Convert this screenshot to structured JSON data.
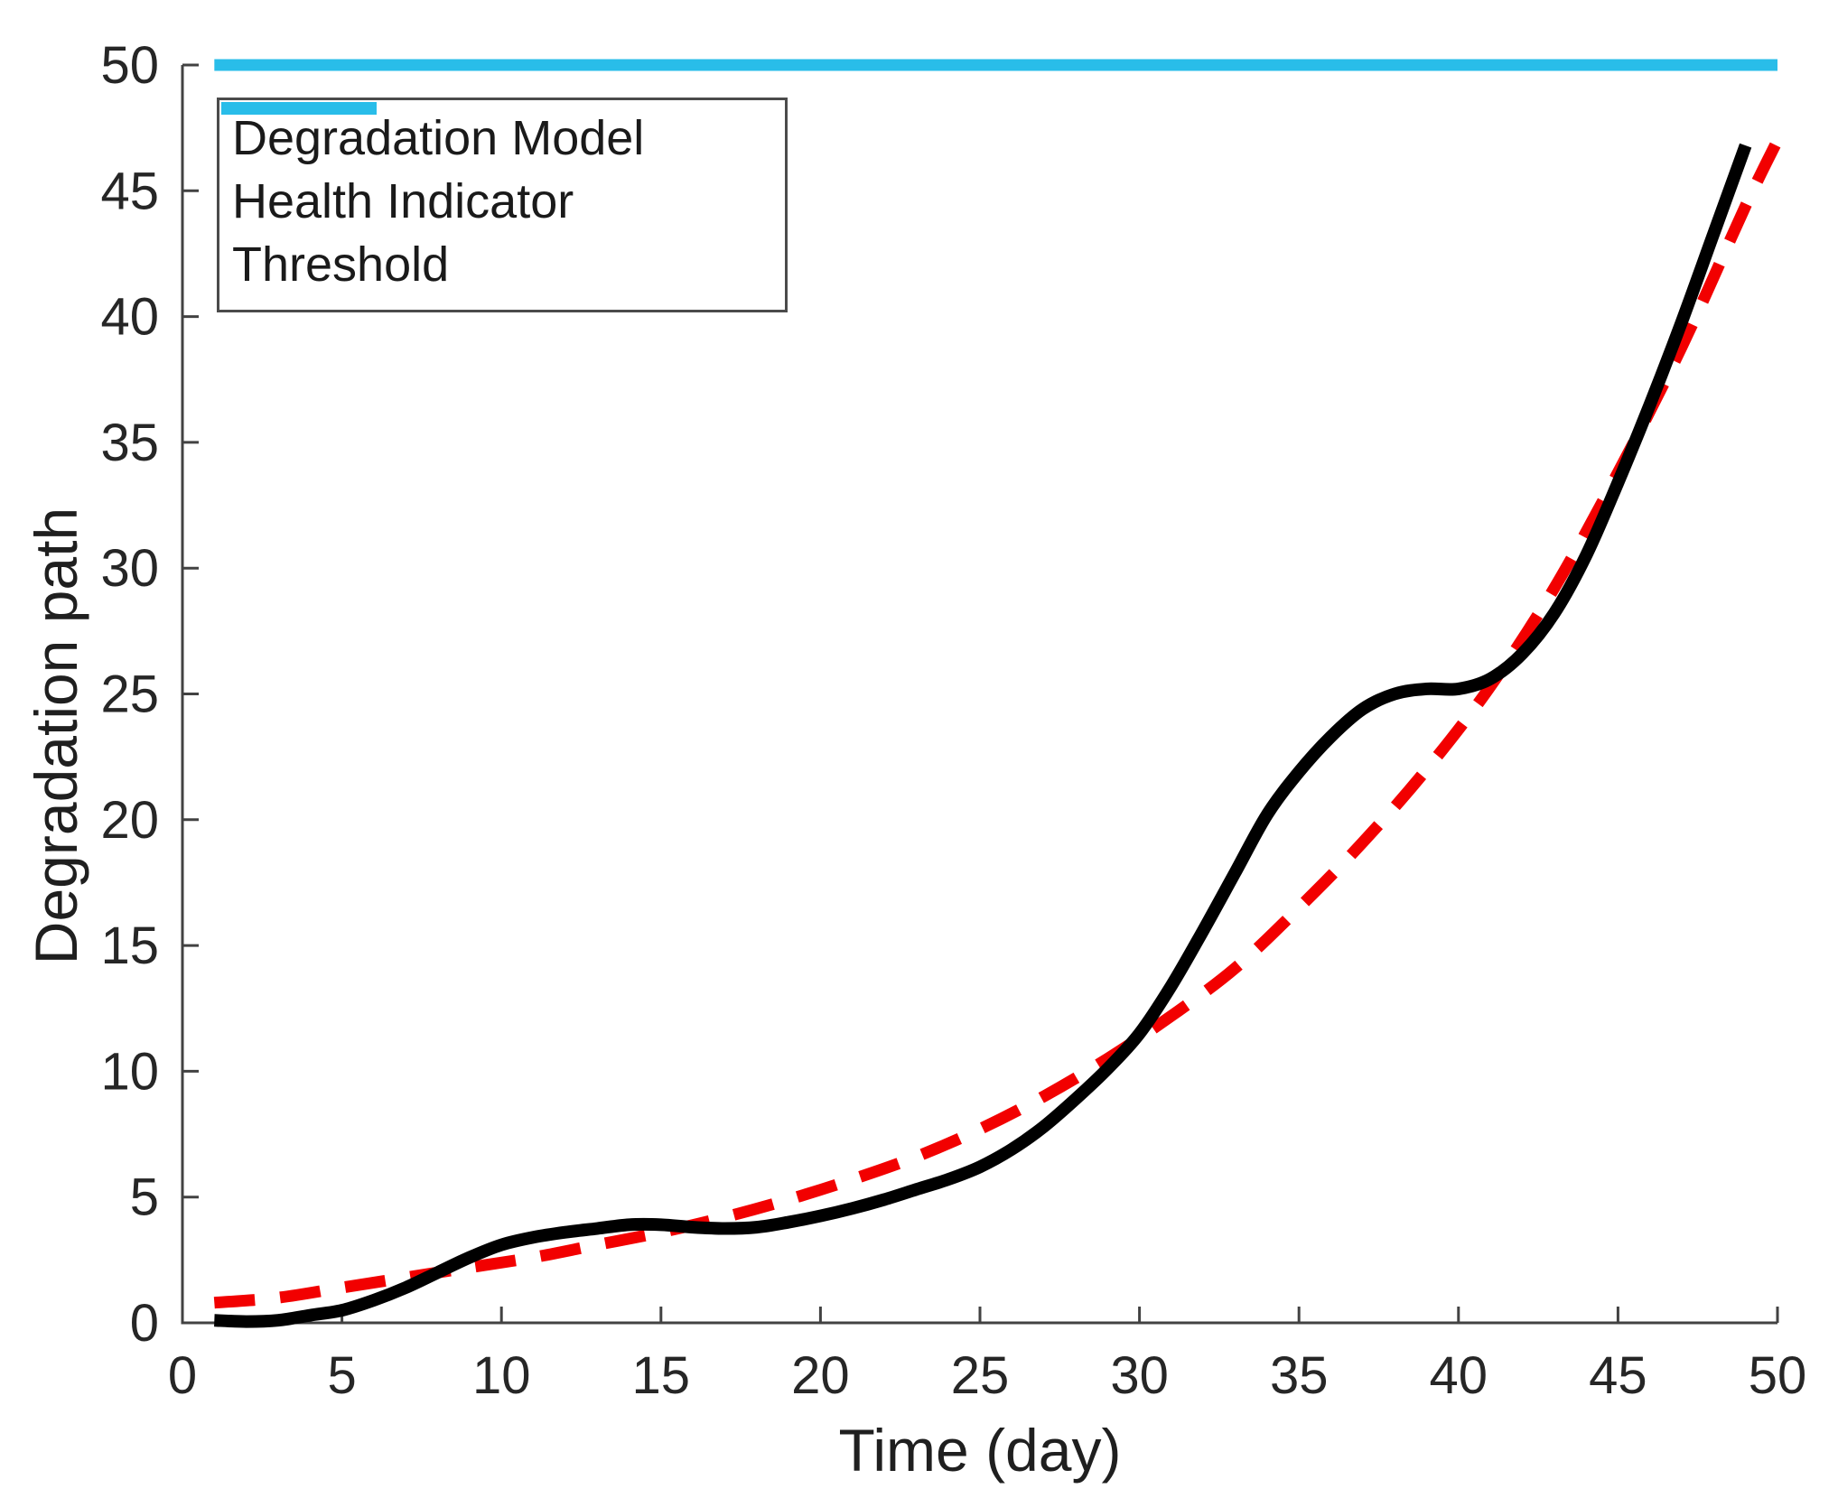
{
  "figure": {
    "background": "#ffffff",
    "axis_color": "#424242",
    "tick_label_color": "#262626"
  },
  "chart_data": {
    "type": "line",
    "title": "",
    "xlabel": "Time (day)",
    "ylabel": "Degradation path",
    "xlim": [
      0,
      50
    ],
    "ylim": [
      0,
      50
    ],
    "xticks": [
      0,
      5,
      10,
      15,
      20,
      25,
      30,
      35,
      40,
      45,
      50
    ],
    "yticks": [
      0,
      5,
      10,
      15,
      20,
      25,
      30,
      35,
      40,
      45,
      50
    ],
    "grid": false,
    "legend_position": "top-left",
    "series": [
      {
        "name": "Degradation Model",
        "color": "#f20000",
        "style": "dashed",
        "width": 13,
        "dash": [
          45,
          28
        ],
        "points": [
          [
            1,
            0.8
          ],
          [
            3,
            1.0
          ],
          [
            5,
            1.4
          ],
          [
            7,
            1.8
          ],
          [
            9,
            2.2
          ],
          [
            11,
            2.6
          ],
          [
            13,
            3.1
          ],
          [
            15,
            3.6
          ],
          [
            17,
            4.2
          ],
          [
            19,
            4.9
          ],
          [
            21,
            5.7
          ],
          [
            23,
            6.6
          ],
          [
            25,
            7.7
          ],
          [
            27,
            9.0
          ],
          [
            29,
            10.5
          ],
          [
            31,
            12.2
          ],
          [
            33,
            14.1
          ],
          [
            35,
            16.5
          ],
          [
            37,
            19.1
          ],
          [
            39,
            22.0
          ],
          [
            41,
            25.3
          ],
          [
            43,
            29.2
          ],
          [
            45,
            33.8
          ],
          [
            47,
            38.8
          ],
          [
            49,
            44.4
          ],
          [
            50,
            47.0
          ]
        ]
      },
      {
        "name": "Health Indicator",
        "color": "#000000",
        "style": "solid",
        "width": 14,
        "dash": null,
        "points": [
          [
            1,
            0.1
          ],
          [
            2,
            0.05
          ],
          [
            3,
            0.1
          ],
          [
            4,
            0.3
          ],
          [
            5,
            0.5
          ],
          [
            6,
            0.9
          ],
          [
            7,
            1.4
          ],
          [
            8,
            2.0
          ],
          [
            9,
            2.6
          ],
          [
            10,
            3.1
          ],
          [
            11,
            3.4
          ],
          [
            12,
            3.6
          ],
          [
            13,
            3.75
          ],
          [
            14,
            3.9
          ],
          [
            15,
            3.9
          ],
          [
            16,
            3.8
          ],
          [
            17,
            3.75
          ],
          [
            18,
            3.8
          ],
          [
            19,
            4.0
          ],
          [
            20,
            4.25
          ],
          [
            21,
            4.55
          ],
          [
            22,
            4.9
          ],
          [
            23,
            5.3
          ],
          [
            24,
            5.7
          ],
          [
            25,
            6.2
          ],
          [
            26,
            6.9
          ],
          [
            27,
            7.8
          ],
          [
            28,
            8.9
          ],
          [
            29,
            10.1
          ],
          [
            30,
            11.5
          ],
          [
            31,
            13.4
          ],
          [
            32,
            15.6
          ],
          [
            33,
            17.9
          ],
          [
            34,
            20.2
          ],
          [
            35,
            21.9
          ],
          [
            36,
            23.3
          ],
          [
            37,
            24.4
          ],
          [
            38,
            25.0
          ],
          [
            39,
            25.2
          ],
          [
            40,
            25.2
          ],
          [
            41,
            25.6
          ],
          [
            42,
            26.6
          ],
          [
            43,
            28.2
          ],
          [
            44,
            30.5
          ],
          [
            45,
            33.4
          ],
          [
            46,
            36.5
          ],
          [
            47,
            39.8
          ],
          [
            48,
            43.3
          ],
          [
            49,
            46.8
          ]
        ]
      },
      {
        "name": "Threshold",
        "color": "#29bde9",
        "style": "solid",
        "width": 13,
        "dash": null,
        "points": [
          [
            1,
            50
          ],
          [
            50,
            50
          ]
        ]
      }
    ]
  }
}
